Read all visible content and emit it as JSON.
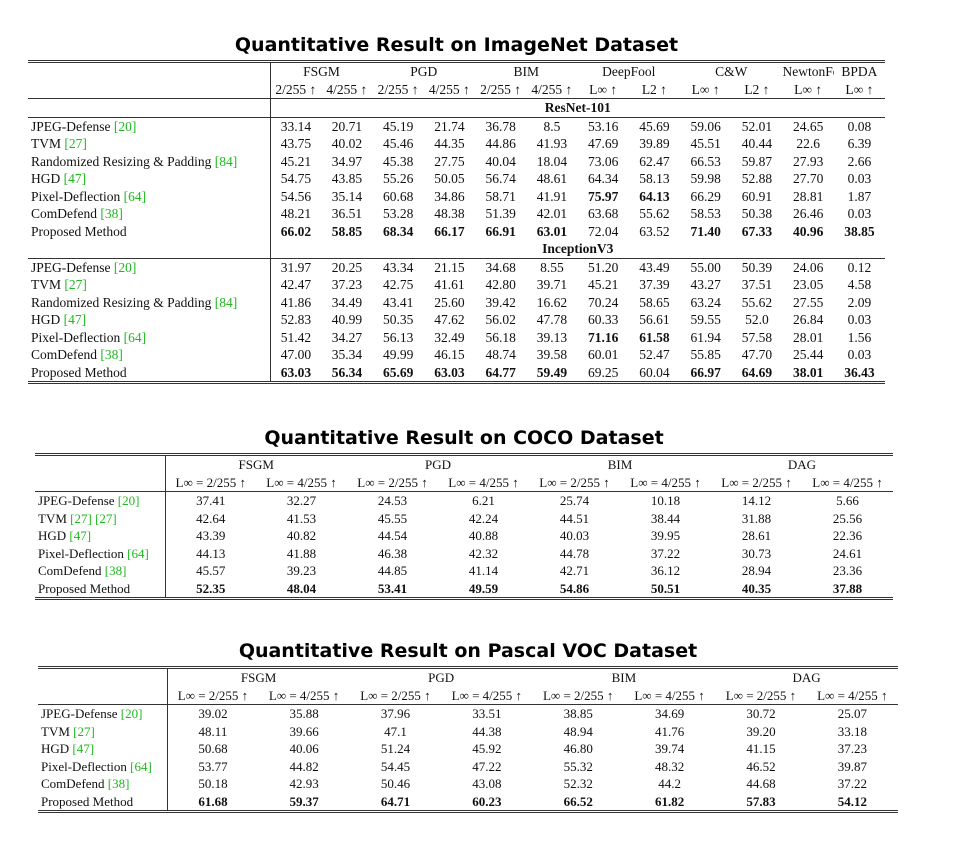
{
  "tables": [
    {
      "title": "Quantitative Result on ImageNet Dataset",
      "groups": [
        {
          "label": "FSGM",
          "span": 2
        },
        {
          "label": "PGD",
          "span": 2
        },
        {
          "label": "BIM",
          "span": 2
        },
        {
          "label": "DeepFool",
          "span": 2
        },
        {
          "label": "C&W",
          "span": 2
        },
        {
          "label": "NewtonFool",
          "span": 1
        },
        {
          "label": "BPDA",
          "span": 1
        }
      ],
      "subheaders": [
        "2/255 ↑",
        "4/255 ↑",
        "2/255 ↑",
        "4/255 ↑",
        "2/255 ↑",
        "4/255 ↑",
        "L∞ ↑",
        "L2 ↑",
        "L∞ ↑",
        "L2 ↑",
        "L∞ ↑",
        "L∞ ↑"
      ],
      "sections": [
        {
          "name": "ResNet-101",
          "rows": [
            {
              "method": "JPEG-Defense",
              "refs": [
                "[20]"
              ],
              "cells": [
                "33.14",
                "20.71",
                "45.19",
                "21.74",
                "36.78",
                "8.5",
                "53.16",
                "45.69",
                "59.06",
                "52.01",
                "24.65",
                "0.08"
              ],
              "bold": []
            },
            {
              "method": "TVM",
              "refs": [
                "[27]"
              ],
              "cells": [
                "43.75",
                "40.02",
                "45.46",
                "44.35",
                "44.86",
                "41.93",
                "47.69",
                "39.89",
                "45.51",
                "40.44",
                "22.6",
                "6.39"
              ],
              "bold": []
            },
            {
              "method": "Randomized Resizing & Padding",
              "refs": [
                "[84]"
              ],
              "cells": [
                "45.21",
                "34.97",
                "45.38",
                "27.75",
                "40.04",
                "18.04",
                "73.06",
                "62.47",
                "66.53",
                "59.87",
                "27.93",
                "2.66"
              ],
              "bold": []
            },
            {
              "method": "HGD",
              "refs": [
                "[47]"
              ],
              "cells": [
                "54.75",
                "43.85",
                "55.26",
                "50.05",
                "56.74",
                "48.61",
                "64.34",
                "58.13",
                "59.98",
                "52.88",
                "27.70",
                "0.03"
              ],
              "bold": []
            },
            {
              "method": "Pixel-Deflection",
              "refs": [
                "[64]"
              ],
              "cells": [
                "54.56",
                "35.14",
                "60.68",
                "34.86",
                "58.71",
                "41.91",
                "75.97",
                "64.13",
                "66.29",
                "60.91",
                "28.81",
                "1.87"
              ],
              "bold": [
                6,
                7
              ]
            },
            {
              "method": "ComDefend",
              "refs": [
                "[38]"
              ],
              "cells": [
                "48.21",
                "36.51",
                "53.28",
                "48.38",
                "51.39",
                "42.01",
                "63.68",
                "55.62",
                "58.53",
                "50.38",
                "26.46",
                "0.03"
              ],
              "bold": []
            },
            {
              "method": "Proposed Method",
              "refs": [],
              "cells": [
                "66.02",
                "58.85",
                "68.34",
                "66.17",
                "66.91",
                "63.01",
                "72.04",
                "63.52",
                "71.40",
                "67.33",
                "40.96",
                "38.85"
              ],
              "bold": [
                0,
                1,
                2,
                3,
                4,
                5,
                8,
                9,
                10,
                11
              ]
            }
          ]
        },
        {
          "name": "InceptionV3",
          "rows": [
            {
              "method": "JPEG-Defense",
              "refs": [
                "[20]"
              ],
              "cells": [
                "31.97",
                "20.25",
                "43.34",
                "21.15",
                "34.68",
                "8.55",
                "51.20",
                "43.49",
                "55.00",
                "50.39",
                "24.06",
                "0.12"
              ],
              "bold": []
            },
            {
              "method": "TVM",
              "refs": [
                "[27]"
              ],
              "cells": [
                "42.47",
                "37.23",
                "42.75",
                "41.61",
                "42.80",
                "39.71",
                "45.21",
                "37.39",
                "43.27",
                "37.51",
                "23.05",
                "4.58"
              ],
              "bold": []
            },
            {
              "method": "Randomized Resizing & Padding",
              "refs": [
                "[84]"
              ],
              "cells": [
                "41.86",
                "34.49",
                "43.41",
                "25.60",
                "39.42",
                "16.62",
                "70.24",
                "58.65",
                "63.24",
                "55.62",
                "27.55",
                "2.09"
              ],
              "bold": []
            },
            {
              "method": "HGD",
              "refs": [
                "[47]"
              ],
              "cells": [
                "52.83",
                "40.99",
                "50.35",
                "47.62",
                "56.02",
                "47.78",
                "60.33",
                "56.61",
                "59.55",
                "52.0",
                "26.84",
                "0.03"
              ],
              "bold": []
            },
            {
              "method": "Pixel-Deflection",
              "refs": [
                "[64]"
              ],
              "cells": [
                "51.42",
                "34.27",
                "56.13",
                "32.49",
                "56.18",
                "39.13",
                "71.16",
                "61.58",
                "61.94",
                "57.58",
                "28.01",
                "1.56"
              ],
              "bold": [
                6,
                7
              ]
            },
            {
              "method": "ComDefend",
              "refs": [
                "[38]"
              ],
              "cells": [
                "47.00",
                "35.34",
                "49.99",
                "46.15",
                "48.74",
                "39.58",
                "60.01",
                "52.47",
                "55.85",
                "47.70",
                "25.44",
                "0.03"
              ],
              "bold": []
            },
            {
              "method": "Proposed Method",
              "refs": [],
              "cells": [
                "63.03",
                "56.34",
                "65.69",
                "63.03",
                "64.77",
                "59.49",
                "69.25",
                "60.04",
                "66.97",
                "64.69",
                "38.01",
                "36.43"
              ],
              "bold": [
                0,
                1,
                2,
                3,
                4,
                5,
                8,
                9,
                10,
                11
              ]
            }
          ]
        }
      ]
    },
    {
      "title": "Quantitative Result on COCO Dataset",
      "groups": [
        {
          "label": "FSGM",
          "span": 2
        },
        {
          "label": "PGD",
          "span": 2
        },
        {
          "label": "BIM",
          "span": 2
        },
        {
          "label": "DAG",
          "span": 2
        }
      ],
      "subheaders": [
        "L∞ = 2/255 ↑",
        "L∞ = 4/255 ↑",
        "L∞ = 2/255 ↑",
        "L∞ = 4/255 ↑",
        "L∞ = 2/255 ↑",
        "L∞ = 4/255 ↑",
        "L∞ = 2/255 ↑",
        "L∞ = 4/255 ↑"
      ],
      "sections": [
        {
          "rows": [
            {
              "method": "JPEG-Defense",
              "refs": [
                "[20]"
              ],
              "cells": [
                "37.41",
                "32.27",
                "24.53",
                "6.21",
                "25.74",
                "10.18",
                "14.12",
                "5.66"
              ],
              "bold": []
            },
            {
              "method": "TVM",
              "refs": [
                "[27]",
                "[27]"
              ],
              "cells": [
                "42.64",
                "41.53",
                "45.55",
                "42.24",
                "44.51",
                "38.44",
                "31.88",
                "25.56"
              ],
              "bold": []
            },
            {
              "method": "HGD",
              "refs": [
                "[47]"
              ],
              "cells": [
                "43.39",
                "40.82",
                "44.54",
                "40.88",
                "40.03",
                "39.95",
                "28.61",
                "22.36"
              ],
              "bold": []
            },
            {
              "method": "Pixel-Deflection",
              "refs": [
                "[64]"
              ],
              "cells": [
                "44.13",
                "41.88",
                "46.38",
                "42.32",
                "44.78",
                "37.22",
                "30.73",
                "24.61"
              ],
              "bold": []
            },
            {
              "method": "ComDefend",
              "refs": [
                "[38]"
              ],
              "cells": [
                "45.57",
                "39.23",
                "44.85",
                "41.14",
                "42.71",
                "36.12",
                "28.94",
                "23.36"
              ],
              "bold": []
            },
            {
              "method": "Proposed Method",
              "refs": [],
              "cells": [
                "52.35",
                "48.04",
                "53.41",
                "49.59",
                "54.86",
                "50.51",
                "40.35",
                "37.88"
              ],
              "bold": [
                0,
                1,
                2,
                3,
                4,
                5,
                6,
                7
              ]
            }
          ]
        }
      ]
    },
    {
      "title": "Quantitative Result on Pascal VOC Dataset",
      "groups": [
        {
          "label": "FSGM",
          "span": 2
        },
        {
          "label": "PGD",
          "span": 2
        },
        {
          "label": "BIM",
          "span": 2
        },
        {
          "label": "DAG",
          "span": 2
        }
      ],
      "subheaders": [
        "L∞ = 2/255 ↑",
        "L∞ = 4/255 ↑",
        "L∞ = 2/255 ↑",
        "L∞ = 4/255 ↑",
        "L∞ = 2/255 ↑",
        "L∞ = 4/255 ↑",
        "L∞ = 2/255 ↑",
        "L∞ = 4/255 ↑"
      ],
      "sections": [
        {
          "rows": [
            {
              "method": "JPEG-Defense",
              "refs": [
                "[20]"
              ],
              "cells": [
                "39.02",
                "35.88",
                "37.96",
                "33.51",
                "38.85",
                "34.69",
                "30.72",
                "25.07"
              ],
              "bold": []
            },
            {
              "method": "TVM",
              "refs": [
                "[27]"
              ],
              "cells": [
                "48.11",
                "39.66",
                "47.1",
                "44.38",
                "48.94",
                "41.76",
                "39.20",
                "33.18"
              ],
              "bold": []
            },
            {
              "method": "HGD",
              "refs": [
                "[47]"
              ],
              "cells": [
                "50.68",
                "40.06",
                "51.24",
                "45.92",
                "46.80",
                "39.74",
                "41.15",
                "37.23"
              ],
              "bold": []
            },
            {
              "method": "Pixel-Deflection",
              "refs": [
                "[64]"
              ],
              "cells": [
                "53.77",
                "44.82",
                "54.45",
                "47.22",
                "55.32",
                "48.32",
                "46.52",
                "39.87"
              ],
              "bold": []
            },
            {
              "method": "ComDefend",
              "refs": [
                "[38]"
              ],
              "cells": [
                "50.18",
                "42.93",
                "50.46",
                "43.08",
                "52.32",
                "44.2",
                "44.68",
                "37.22"
              ],
              "bold": []
            },
            {
              "method": "Proposed Method",
              "refs": [],
              "cells": [
                "61.68",
                "59.37",
                "64.71",
                "60.23",
                "66.52",
                "61.82",
                "57.83",
                "54.12"
              ],
              "bold": [
                0,
                1,
                2,
                3,
                4,
                5,
                6,
                7
              ]
            }
          ]
        }
      ]
    }
  ]
}
